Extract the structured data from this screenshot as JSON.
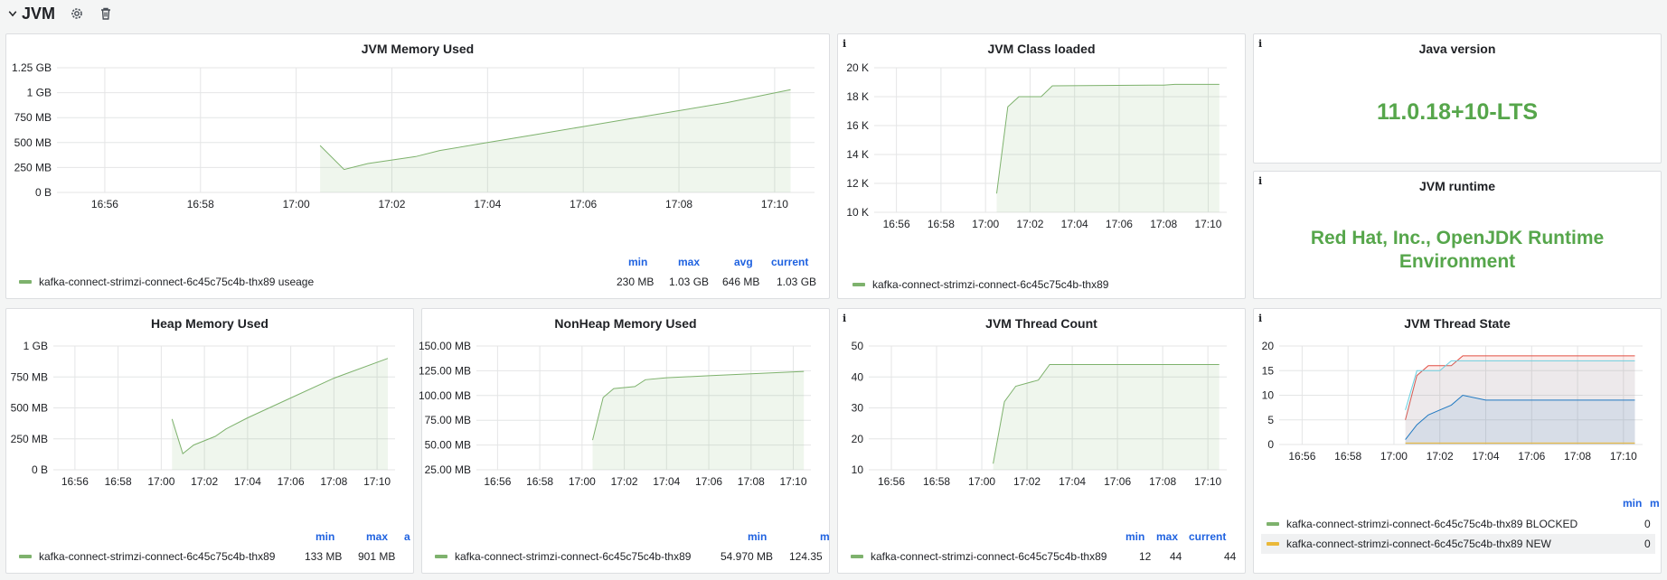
{
  "row": {
    "title": "JVM",
    "icons": [
      "chevron-down-icon",
      "gear-icon",
      "trash-icon"
    ]
  },
  "colors": {
    "green": "#7eb26d",
    "fill": "rgba(126,178,109,0.12)",
    "accent": "#56a64b",
    "legend_head": "#1f62e0",
    "red": "#e24d42",
    "cyan": "#6ed0e0",
    "blue": "#1f78c1",
    "orange": "#eab839"
  },
  "panels": {
    "memory": {
      "title": "JVM Memory Used",
      "legend": {
        "min": "min",
        "max": "max",
        "avg": "avg",
        "current": "current"
      },
      "series_label": "kafka-connect-strimzi-connect-6c45c75c4b-thx89 useage",
      "values": {
        "min": "230 MB",
        "max": "1.03 GB",
        "avg": "646 MB",
        "current": "1.03 GB"
      }
    },
    "classes": {
      "info": "i",
      "title": "JVM Class loaded",
      "series_label": "kafka-connect-strimzi-connect-6c45c75c4b-thx89"
    },
    "java_version": {
      "info": "i",
      "title": "Java version",
      "value": "11.0.18+10-LTS"
    },
    "runtime": {
      "info": "i",
      "title": "JVM runtime",
      "value_line1": "Red Hat, Inc., OpenJDK Runtime",
      "value_line2": "Environment"
    },
    "heap": {
      "title": "Heap Memory Used",
      "legend": {
        "min": "min",
        "max": "max",
        "avg": "a"
      },
      "series_label": "kafka-connect-strimzi-connect-6c45c75c4b-thx89",
      "values": {
        "min": "133 MB",
        "max": "901 MB"
      }
    },
    "nonheap": {
      "title": "NonHeap Memory Used",
      "legend": {
        "min": "min",
        "max": "m"
      },
      "series_label": "kafka-connect-strimzi-connect-6c45c75c4b-thx89",
      "values": {
        "min": "54.970 MB",
        "max": "124.35"
      }
    },
    "threads": {
      "info": "i",
      "title": "JVM Thread Count",
      "legend": {
        "min": "min",
        "max": "max",
        "current": "current"
      },
      "series_label": "kafka-connect-strimzi-connect-6c45c75c4b-thx89",
      "values": {
        "min": "12",
        "max": "44",
        "current": "44"
      }
    },
    "thread_state": {
      "info": "i",
      "title": "JVM Thread State",
      "legend": {
        "min": "min",
        "max": "m"
      },
      "rows": [
        {
          "label": "kafka-connect-strimzi-connect-6c45c75c4b-thx89 BLOCKED",
          "value": "0"
        },
        {
          "label": "kafka-connect-strimzi-connect-6c45c75c4b-thx89 NEW",
          "value": "0"
        }
      ]
    }
  },
  "chart_data": [
    {
      "type": "area",
      "title": "JVM Memory Used",
      "x_ticks": [
        "16:56",
        "16:58",
        "17:00",
        "17:02",
        "17:04",
        "17:06",
        "17:08",
        "17:10"
      ],
      "y_ticks": [
        "0 B",
        "250 MB",
        "500 MB",
        "750 MB",
        "1 GB",
        "1.25 GB"
      ],
      "ylim": [
        0,
        1.25
      ],
      "series": [
        {
          "name": "kafka-connect-strimzi-connect-6c45c75c4b-thx89 useage",
          "x": [
            "17:00:30",
            "17:01",
            "17:01:30",
            "17:02:30",
            "17:03",
            "17:04",
            "17:05",
            "17:06",
            "17:07",
            "17:08",
            "17:09",
            "17:10:20"
          ],
          "y": [
            0.47,
            0.23,
            0.29,
            0.36,
            0.42,
            0.5,
            0.58,
            0.66,
            0.74,
            0.82,
            0.9,
            1.03
          ]
        }
      ]
    },
    {
      "type": "area",
      "title": "JVM Class loaded",
      "x_ticks": [
        "16:56",
        "16:58",
        "17:00",
        "17:02",
        "17:04",
        "17:06",
        "17:08",
        "17:10"
      ],
      "y_ticks": [
        "10 K",
        "12 K",
        "14 K",
        "16 K",
        "18 K",
        "20 K"
      ],
      "ylim": [
        10,
        20
      ],
      "series": [
        {
          "name": "kafka-connect-strimzi-connect-6c45c75c4b-thx89",
          "x": [
            "17:00:30",
            "17:01",
            "17:01:30",
            "17:02:30",
            "17:03",
            "17:08",
            "17:08:30",
            "17:10:30"
          ],
          "y": [
            11.3,
            17.3,
            18.0,
            18.0,
            18.75,
            18.8,
            18.85,
            18.85
          ]
        }
      ]
    },
    {
      "type": "area",
      "title": "Heap Memory Used",
      "x_ticks": [
        "16:56",
        "16:58",
        "17:00",
        "17:02",
        "17:04",
        "17:06",
        "17:08",
        "17:10"
      ],
      "y_ticks": [
        "0 B",
        "250 MB",
        "500 MB",
        "750 MB",
        "1 GB"
      ],
      "ylim": [
        0,
        1.0
      ],
      "series": [
        {
          "name": "kafka-connect-strimzi-connect-6c45c75c4b-thx89",
          "x": [
            "17:00:30",
            "17:01",
            "17:01:30",
            "17:02:30",
            "17:03",
            "17:04",
            "17:06",
            "17:08",
            "17:10:30"
          ],
          "y": [
            0.41,
            0.13,
            0.2,
            0.27,
            0.33,
            0.42,
            0.58,
            0.74,
            0.9
          ]
        }
      ]
    },
    {
      "type": "area",
      "title": "NonHeap Memory Used",
      "x_ticks": [
        "16:56",
        "16:58",
        "17:00",
        "17:02",
        "17:04",
        "17:06",
        "17:08",
        "17:10"
      ],
      "y_ticks": [
        "25.00 MB",
        "50.00 MB",
        "75.00 MB",
        "100.00 MB",
        "125.00 MB",
        "150.00 MB"
      ],
      "ylim": [
        25,
        150
      ],
      "series": [
        {
          "name": "kafka-connect-strimzi-connect-6c45c75c4b-thx89",
          "x": [
            "17:00:30",
            "17:01",
            "17:01:30",
            "17:02:30",
            "17:03",
            "17:04",
            "17:06",
            "17:08",
            "17:10:30"
          ],
          "y": [
            55,
            98,
            107,
            109,
            116,
            118,
            120,
            122,
            124.35
          ]
        }
      ]
    },
    {
      "type": "area",
      "title": "JVM Thread Count",
      "x_ticks": [
        "16:56",
        "16:58",
        "17:00",
        "17:02",
        "17:04",
        "17:06",
        "17:08",
        "17:10"
      ],
      "y_ticks": [
        "10",
        "20",
        "30",
        "40",
        "50"
      ],
      "ylim": [
        10,
        50
      ],
      "series": [
        {
          "name": "kafka-connect-strimzi-connect-6c45c75c4b-thx89",
          "x": [
            "17:00:30",
            "17:01",
            "17:01:30",
            "17:02:30",
            "17:03",
            "17:10:30"
          ],
          "y": [
            12,
            32,
            37,
            39,
            44,
            44
          ]
        }
      ]
    },
    {
      "type": "area",
      "title": "JVM Thread State",
      "x_ticks": [
        "16:56",
        "16:58",
        "17:00",
        "17:02",
        "17:04",
        "17:06",
        "17:08",
        "17:10"
      ],
      "y_ticks": [
        "0",
        "5",
        "10",
        "15",
        "20"
      ],
      "ylim": [
        0,
        20
      ],
      "series": [
        {
          "color": "#e24d42",
          "x": [
            "17:00:30",
            "17:01",
            "17:01:30",
            "17:02",
            "17:02:30",
            "17:03",
            "17:04",
            "17:10:30"
          ],
          "y": [
            5,
            14,
            16,
            16,
            16,
            18,
            18,
            18
          ]
        },
        {
          "color": "#6ed0e0",
          "x": [
            "17:00:30",
            "17:01",
            "17:01:30",
            "17:02",
            "17:02:30",
            "17:03",
            "17:04",
            "17:10:30"
          ],
          "y": [
            7,
            15,
            15,
            15,
            17,
            17,
            17,
            17
          ]
        },
        {
          "color": "#1f78c1",
          "x": [
            "17:00:30",
            "17:01",
            "17:01:30",
            "17:02",
            "17:02:30",
            "17:03",
            "17:04",
            "17:10:30"
          ],
          "y": [
            1,
            4,
            6,
            7,
            8,
            10,
            9,
            9
          ]
        },
        {
          "color": "#eab839",
          "x": [
            "17:00:30",
            "17:10:30"
          ],
          "y": [
            0.3,
            0.3
          ]
        }
      ]
    }
  ]
}
